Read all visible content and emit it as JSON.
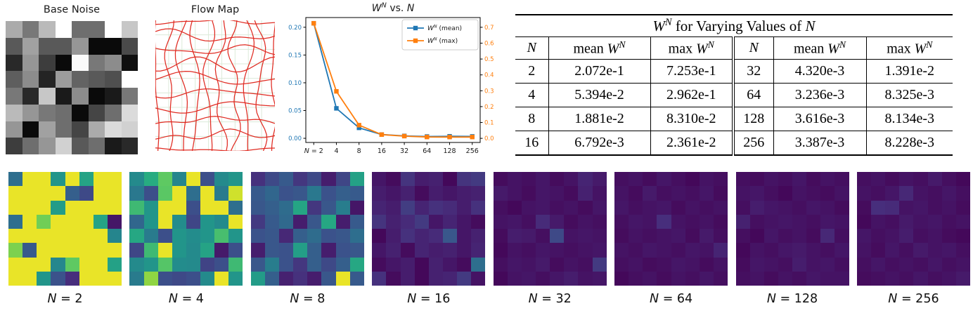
{
  "base_noise": {
    "title": "Base Noise",
    "values": [
      [
        0.67,
        0.47,
        0.73,
        1.0,
        0.43,
        0.43,
        1.0,
        0.78
      ],
      [
        0.35,
        0.63,
        0.35,
        0.35,
        0.59,
        0.04,
        0.04,
        0.29
      ],
      [
        0.16,
        0.59,
        0.24,
        0.04,
        0.98,
        0.47,
        0.55,
        0.06
      ],
      [
        0.37,
        0.55,
        0.14,
        0.61,
        0.39,
        0.35,
        0.31,
        1.0
      ],
      [
        0.47,
        0.16,
        0.78,
        0.1,
        0.55,
        0.04,
        0.1,
        0.47
      ],
      [
        0.73,
        0.59,
        0.47,
        0.43,
        0.04,
        0.27,
        0.43,
        0.86
      ],
      [
        0.59,
        0.04,
        0.63,
        0.43,
        0.27,
        0.67,
        0.86,
        0.82
      ],
      [
        0.24,
        0.43,
        0.59,
        0.82,
        0.35,
        0.43,
        0.1,
        0.16
      ]
    ]
  },
  "flow_map": {
    "title": "Flow Map",
    "line_color": "#e02b22",
    "bg_grid_color": "#dcead9",
    "n_vertical": 10,
    "n_horizontal": 10
  },
  "chart_data": {
    "type": "line",
    "title": "W^N vs. N",
    "categories": [
      2,
      4,
      8,
      16,
      32,
      64,
      128,
      256
    ],
    "x_tick_labels": [
      "N = 2",
      "4",
      "8",
      "16",
      "32",
      "64",
      "128",
      "256"
    ],
    "series": [
      {
        "name": "W^N (mean)",
        "axis": "left",
        "color": "#1f77b4",
        "marker": "square",
        "values": [
          0.2072,
          0.05394,
          0.01881,
          0.006792,
          0.00432,
          0.003236,
          0.003616,
          0.003387
        ]
      },
      {
        "name": "W^N (max)",
        "axis": "right",
        "color": "#ff7f0e",
        "marker": "square",
        "values": [
          0.7253,
          0.2962,
          0.0831,
          0.02361,
          0.01391,
          0.008325,
          0.008134,
          0.008228
        ]
      }
    ],
    "left_axis": {
      "color": "#1f77b4",
      "tick_labels": [
        "0.00",
        "0.05",
        "0.10",
        "0.15",
        "0.20"
      ],
      "range": [
        -0.0075,
        0.2175
      ]
    },
    "right_axis": {
      "color": "#ff7f0e",
      "tick_labels": [
        "0.0",
        "0.1",
        "0.2",
        "0.3",
        "0.4",
        "0.5",
        "0.6",
        "0.7"
      ],
      "range": [
        -0.026,
        0.7614
      ]
    },
    "legend_position": "upper right",
    "grid": false
  },
  "table": {
    "title": "W^N for Varying Values of N",
    "headers": [
      "N",
      "mean W^N",
      "max W^N",
      "N",
      "mean W^N",
      "max W^N"
    ],
    "rows": [
      [
        "2",
        "2.072e-1",
        "7.253e-1",
        "32",
        "4.320e-3",
        "1.391e-2"
      ],
      [
        "4",
        "5.394e-2",
        "2.962e-1",
        "64",
        "3.236e-3",
        "8.325e-3"
      ],
      [
        "8",
        "1.881e-2",
        "8.310e-2",
        "128",
        "3.616e-3",
        "8.134e-3"
      ],
      [
        "16",
        "6.792e-3",
        "2.361e-2",
        "256",
        "3.387e-3",
        "8.228e-3"
      ]
    ]
  },
  "colormap": {
    "name": "viridis",
    "positions": [
      0,
      0.125,
      0.25,
      0.375,
      0.5,
      0.625,
      0.75,
      0.875,
      1
    ],
    "colors": [
      "#440154",
      "#472d7b",
      "#3b528b",
      "#2c728e",
      "#21918c",
      "#27ad81",
      "#5ec962",
      "#aadc32",
      "#fde725"
    ]
  },
  "heatmaps": [
    {
      "label": "N = 2",
      "values": [
        [
          0.36,
          0.97,
          0.97,
          0.52,
          0.97,
          0.58,
          0.97,
          0.97
        ],
        [
          0.97,
          0.97,
          0.97,
          0.97,
          0.3,
          0.22,
          0.97,
          0.97
        ],
        [
          0.97,
          0.97,
          0.97,
          0.55,
          0.97,
          0.97,
          0.97,
          0.97
        ],
        [
          0.36,
          0.97,
          0.78,
          0.97,
          0.97,
          0.97,
          0.58,
          0.06
        ],
        [
          0.97,
          0.97,
          0.97,
          0.97,
          0.97,
          0.97,
          0.97,
          0.45
        ],
        [
          0.8,
          0.28,
          0.97,
          0.97,
          0.97,
          0.97,
          0.97,
          0.97
        ],
        [
          0.97,
          0.97,
          0.97,
          0.46,
          0.75,
          0.97,
          0.97,
          0.57
        ],
        [
          0.97,
          0.97,
          0.52,
          0.25,
          0.13,
          0.97,
          0.97,
          0.97
        ]
      ]
    },
    {
      "label": "N = 4",
      "values": [
        [
          0.47,
          0.62,
          0.75,
          0.45,
          0.97,
          0.24,
          0.47,
          0.52
        ],
        [
          0.4,
          0.24,
          0.74,
          0.97,
          0.36,
          0.97,
          0.41,
          0.93
        ],
        [
          0.68,
          0.52,
          0.97,
          0.97,
          0.24,
          0.97,
          0.97,
          0.36
        ],
        [
          0.33,
          0.52,
          0.97,
          0.48,
          0.21,
          0.52,
          0.47,
          0.97
        ],
        [
          0.6,
          0.41,
          0.24,
          0.52,
          0.48,
          0.52,
          0.7,
          0.52
        ],
        [
          0.21,
          0.68,
          0.97,
          0.52,
          0.47,
          0.58,
          0.07,
          0.24
        ],
        [
          0.47,
          0.52,
          0.73,
          0.48,
          0.47,
          0.2,
          0.24,
          0.68
        ],
        [
          0.41,
          0.83,
          0.24,
          0.22,
          0.24,
          0.47,
          0.97,
          0.52
        ]
      ]
    },
    {
      "label": "N = 8",
      "values": [
        [
          0.14,
          0.22,
          0.28,
          0.16,
          0.22,
          0.08,
          0.21,
          0.57
        ],
        [
          0.28,
          0.33,
          0.25,
          0.27,
          0.4,
          0.25,
          0.3,
          0.28
        ],
        [
          0.27,
          0.3,
          0.35,
          0.59,
          0.16,
          0.27,
          0.42,
          0.06
        ],
        [
          0.17,
          0.28,
          0.34,
          0.08,
          0.27,
          0.6,
          0.08,
          0.28
        ],
        [
          0.25,
          0.27,
          0.11,
          0.3,
          0.35,
          0.25,
          0.27,
          0.36
        ],
        [
          0.08,
          0.27,
          0.25,
          0.56,
          0.3,
          0.08,
          0.25,
          0.27
        ],
        [
          0.27,
          0.42,
          0.25,
          0.16,
          0.3,
          0.22,
          0.3,
          0.6
        ],
        [
          0.55,
          0.3,
          0.09,
          0.14,
          0.08,
          0.27,
          0.97,
          0.28
        ]
      ]
    },
    {
      "label": "N = 16",
      "values": [
        [
          0.06,
          0.03,
          0.15,
          0.08,
          0.09,
          0.02,
          0.15,
          0.17
        ],
        [
          0.08,
          0.06,
          0.09,
          0.03,
          0.08,
          0.06,
          0.08,
          0.09
        ],
        [
          0.1,
          0.08,
          0.18,
          0.1,
          0.14,
          0.12,
          0.08,
          0.14
        ],
        [
          0.15,
          0.09,
          0.12,
          0.17,
          0.06,
          0.1,
          0.06,
          0.03
        ],
        [
          0.02,
          0.08,
          0.14,
          0.1,
          0.12,
          0.27,
          0.06,
          0.09
        ],
        [
          0.06,
          0.09,
          0.03,
          0.1,
          0.08,
          0.09,
          0.06,
          0.1
        ],
        [
          0.03,
          0.06,
          0.08,
          0.02,
          0.09,
          0.06,
          0.03,
          0.36
        ],
        [
          0.14,
          0.03,
          0.08,
          0.02,
          0.09,
          0.1,
          0.17,
          0.05
        ]
      ]
    },
    {
      "label": "N = 32",
      "values": [
        [
          0.03,
          0.05,
          0.04,
          0.06,
          0.03,
          0.05,
          0.1,
          0.07
        ],
        [
          0.07,
          0.05,
          0.03,
          0.06,
          0.05,
          0.03,
          0.09,
          0.05
        ],
        [
          0.04,
          0.02,
          0.05,
          0.06,
          0.04,
          0.05,
          0.03,
          0.06
        ],
        [
          0.05,
          0.06,
          0.04,
          0.12,
          0.07,
          0.03,
          0.05,
          0.04
        ],
        [
          0.03,
          0.08,
          0.07,
          0.04,
          0.22,
          0.05,
          0.06,
          0.05
        ],
        [
          0.02,
          0.05,
          0.04,
          0.06,
          0.05,
          0.04,
          0.05,
          0.06
        ],
        [
          0.04,
          0.06,
          0.05,
          0.07,
          0.03,
          0.05,
          0.04,
          0.17
        ],
        [
          0.02,
          0.05,
          0.06,
          0.04,
          0.06,
          0.08,
          0.05,
          0.06
        ]
      ]
    },
    {
      "label": "N = 64",
      "values": [
        [
          0.04,
          0.05,
          0.03,
          0.06,
          0.04,
          0.02,
          0.05,
          0.04
        ],
        [
          0.05,
          0.03,
          0.07,
          0.04,
          0.05,
          0.04,
          0.06,
          0.03
        ],
        [
          0.06,
          0.04,
          0.05,
          0.06,
          0.03,
          0.05,
          0.04,
          0.05
        ],
        [
          0.04,
          0.06,
          0.05,
          0.13,
          0.05,
          0.04,
          0.05,
          0.03
        ],
        [
          0.03,
          0.05,
          0.04,
          0.05,
          0.06,
          0.03,
          0.07,
          0.04
        ],
        [
          0.05,
          0.04,
          0.06,
          0.05,
          0.04,
          0.06,
          0.05,
          0.1
        ],
        [
          0.04,
          0.05,
          0.03,
          0.04,
          0.06,
          0.05,
          0.03,
          0.05
        ],
        [
          0.02,
          0.04,
          0.05,
          0.03,
          0.05,
          0.04,
          0.06,
          0.04
        ]
      ]
    },
    {
      "label": "N = 128",
      "values": [
        [
          0.04,
          0.03,
          0.05,
          0.04,
          0.06,
          0.03,
          0.05,
          0.04
        ],
        [
          0.05,
          0.06,
          0.04,
          0.02,
          0.05,
          0.04,
          0.03,
          0.05
        ],
        [
          0.04,
          0.08,
          0.06,
          0.05,
          0.04,
          0.06,
          0.05,
          0.03
        ],
        [
          0.09,
          0.04,
          0.05,
          0.06,
          0.05,
          0.04,
          0.06,
          0.05
        ],
        [
          0.04,
          0.02,
          0.06,
          0.04,
          0.05,
          0.03,
          0.11,
          0.04
        ],
        [
          0.02,
          0.05,
          0.04,
          0.06,
          0.07,
          0.05,
          0.04,
          0.06
        ],
        [
          0.03,
          0.06,
          0.05,
          0.04,
          0.08,
          0.05,
          0.06,
          0.04
        ],
        [
          0.04,
          0.05,
          0.03,
          0.05,
          0.04,
          0.06,
          0.05,
          0.05
        ]
      ]
    },
    {
      "label": "N = 256",
      "values": [
        [
          0.04,
          0.05,
          0.03,
          0.05,
          0.04,
          0.07,
          0.04,
          0.02
        ],
        [
          0.05,
          0.04,
          0.06,
          0.11,
          0.05,
          0.04,
          0.06,
          0.04
        ],
        [
          0.03,
          0.13,
          0.12,
          0.05,
          0.06,
          0.04,
          0.05,
          0.03
        ],
        [
          0.02,
          0.05,
          0.04,
          0.07,
          0.05,
          0.06,
          0.04,
          0.05
        ],
        [
          0.06,
          0.04,
          0.05,
          0.08,
          0.04,
          0.05,
          0.03,
          0.02
        ],
        [
          0.05,
          0.03,
          0.06,
          0.04,
          0.07,
          0.05,
          0.06,
          0.04
        ],
        [
          0.04,
          0.06,
          0.04,
          0.05,
          0.04,
          0.06,
          0.04,
          0.05
        ],
        [
          0.03,
          0.04,
          0.05,
          0.04,
          0.06,
          0.04,
          0.05,
          0.07
        ]
      ]
    }
  ]
}
